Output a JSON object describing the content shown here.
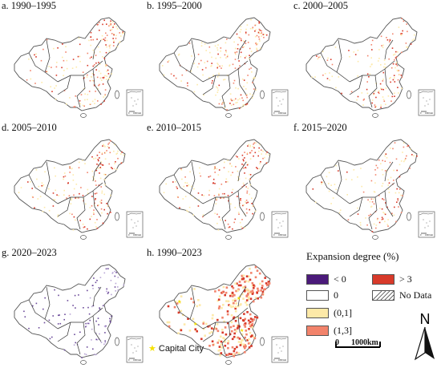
{
  "panels": [
    {
      "id": "a",
      "title": "a. 1990–1995",
      "intensity": 0.55
    },
    {
      "id": "b",
      "title": "b. 1995–2000",
      "intensity": 0.6
    },
    {
      "id": "c",
      "title": "c. 2000–2005",
      "intensity": 0.4
    },
    {
      "id": "d",
      "title": "d. 2005–2010",
      "intensity": 0.5
    },
    {
      "id": "e",
      "title": "e. 2010–2015",
      "intensity": 0.55
    },
    {
      "id": "f",
      "title": "f. 2015–2020",
      "intensity": 0.35
    },
    {
      "id": "g",
      "title": "g. 2020–2023",
      "intensity": 0.1
    },
    {
      "id": "h",
      "title": "h. 1990–2023",
      "intensity": 1.0
    }
  ],
  "inset": {
    "scale_zero": "0",
    "scale_label": "1000 km"
  },
  "legend": {
    "title": "Expansion degree (%)",
    "items": [
      {
        "label": "< 0",
        "color": "#4b1a7a",
        "pattern": false
      },
      {
        "label": "> 3",
        "color": "#d83a2a",
        "pattern": false
      },
      {
        "label": "0",
        "color": "#ffffff",
        "pattern": false
      },
      {
        "label": "No Data",
        "color": "#ffffff",
        "pattern": true
      },
      {
        "label": "(0,1]",
        "color": "#fde9a8",
        "pattern": false
      },
      {
        "label": "(1,3]",
        "color": "#f2836b",
        "pattern": false
      }
    ],
    "capital_label": "Capital City"
  },
  "scale": {
    "zero": "0",
    "distance": "1000km"
  },
  "north": "N",
  "colors": {
    "outline": "#555555",
    "border": "#333333",
    "capital": "#f5e100"
  }
}
